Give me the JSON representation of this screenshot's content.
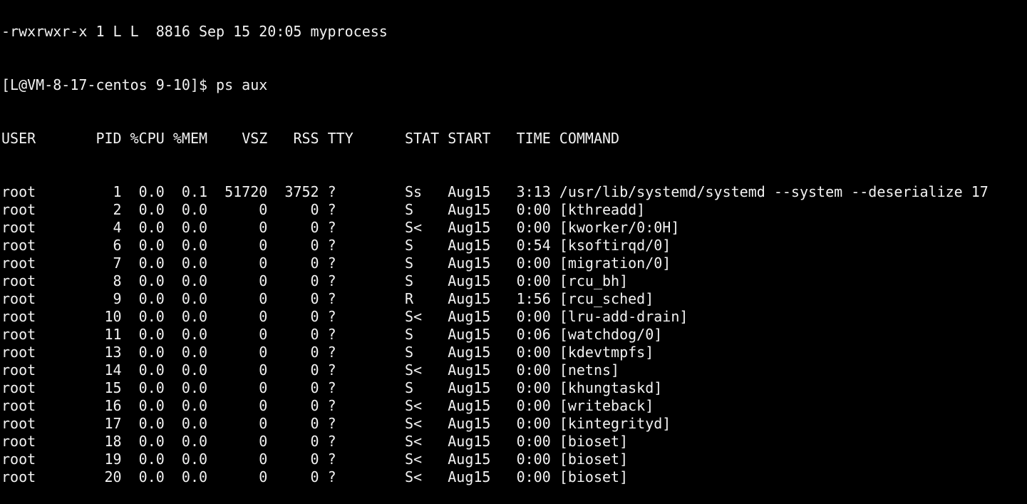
{
  "terminal": {
    "previous_line": "-rwxrwxr-x 1 L L  8816 Sep 15 20:05 myprocess",
    "prompt": "[L@VM-8-17-centos 9-10]$ ",
    "command": "ps aux",
    "header": {
      "user": "USER",
      "pid": "PID",
      "cpu": "%CPU",
      "mem": "%MEM",
      "vsz": "VSZ",
      "rss": "RSS",
      "tty": "TTY",
      "stat": "STAT",
      "start": "START",
      "time": "TIME",
      "command": "COMMAND"
    },
    "processes": [
      {
        "user": "root",
        "pid": "1",
        "cpu": "0.0",
        "mem": "0.1",
        "vsz": "51720",
        "rss": "3752",
        "tty": "?",
        "stat": "Ss",
        "start": "Aug15",
        "time": "3:13",
        "command": "/usr/lib/systemd/systemd --system --deserialize 17"
      },
      {
        "user": "root",
        "pid": "2",
        "cpu": "0.0",
        "mem": "0.0",
        "vsz": "0",
        "rss": "0",
        "tty": "?",
        "stat": "S",
        "start": "Aug15",
        "time": "0:00",
        "command": "[kthreadd]"
      },
      {
        "user": "root",
        "pid": "4",
        "cpu": "0.0",
        "mem": "0.0",
        "vsz": "0",
        "rss": "0",
        "tty": "?",
        "stat": "S<",
        "start": "Aug15",
        "time": "0:00",
        "command": "[kworker/0:0H]"
      },
      {
        "user": "root",
        "pid": "6",
        "cpu": "0.0",
        "mem": "0.0",
        "vsz": "0",
        "rss": "0",
        "tty": "?",
        "stat": "S",
        "start": "Aug15",
        "time": "0:54",
        "command": "[ksoftirqd/0]"
      },
      {
        "user": "root",
        "pid": "7",
        "cpu": "0.0",
        "mem": "0.0",
        "vsz": "0",
        "rss": "0",
        "tty": "?",
        "stat": "S",
        "start": "Aug15",
        "time": "0:00",
        "command": "[migration/0]"
      },
      {
        "user": "root",
        "pid": "8",
        "cpu": "0.0",
        "mem": "0.0",
        "vsz": "0",
        "rss": "0",
        "tty": "?",
        "stat": "S",
        "start": "Aug15",
        "time": "0:00",
        "command": "[rcu_bh]"
      },
      {
        "user": "root",
        "pid": "9",
        "cpu": "0.0",
        "mem": "0.0",
        "vsz": "0",
        "rss": "0",
        "tty": "?",
        "stat": "R",
        "start": "Aug15",
        "time": "1:56",
        "command": "[rcu_sched]"
      },
      {
        "user": "root",
        "pid": "10",
        "cpu": "0.0",
        "mem": "0.0",
        "vsz": "0",
        "rss": "0",
        "tty": "?",
        "stat": "S<",
        "start": "Aug15",
        "time": "0:00",
        "command": "[lru-add-drain]"
      },
      {
        "user": "root",
        "pid": "11",
        "cpu": "0.0",
        "mem": "0.0",
        "vsz": "0",
        "rss": "0",
        "tty": "?",
        "stat": "S",
        "start": "Aug15",
        "time": "0:06",
        "command": "[watchdog/0]"
      },
      {
        "user": "root",
        "pid": "13",
        "cpu": "0.0",
        "mem": "0.0",
        "vsz": "0",
        "rss": "0",
        "tty": "?",
        "stat": "S",
        "start": "Aug15",
        "time": "0:00",
        "command": "[kdevtmpfs]"
      },
      {
        "user": "root",
        "pid": "14",
        "cpu": "0.0",
        "mem": "0.0",
        "vsz": "0",
        "rss": "0",
        "tty": "?",
        "stat": "S<",
        "start": "Aug15",
        "time": "0:00",
        "command": "[netns]"
      },
      {
        "user": "root",
        "pid": "15",
        "cpu": "0.0",
        "mem": "0.0",
        "vsz": "0",
        "rss": "0",
        "tty": "?",
        "stat": "S",
        "start": "Aug15",
        "time": "0:00",
        "command": "[khungtaskd]"
      },
      {
        "user": "root",
        "pid": "16",
        "cpu": "0.0",
        "mem": "0.0",
        "vsz": "0",
        "rss": "0",
        "tty": "?",
        "stat": "S<",
        "start": "Aug15",
        "time": "0:00",
        "command": "[writeback]"
      },
      {
        "user": "root",
        "pid": "17",
        "cpu": "0.0",
        "mem": "0.0",
        "vsz": "0",
        "rss": "0",
        "tty": "?",
        "stat": "S<",
        "start": "Aug15",
        "time": "0:00",
        "command": "[kintegrityd]"
      },
      {
        "user": "root",
        "pid": "18",
        "cpu": "0.0",
        "mem": "0.0",
        "vsz": "0",
        "rss": "0",
        "tty": "?",
        "stat": "S<",
        "start": "Aug15",
        "time": "0:00",
        "command": "[bioset]"
      },
      {
        "user": "root",
        "pid": "19",
        "cpu": "0.0",
        "mem": "0.0",
        "vsz": "0",
        "rss": "0",
        "tty": "?",
        "stat": "S<",
        "start": "Aug15",
        "time": "0:00",
        "command": "[bioset]"
      },
      {
        "user": "root",
        "pid": "20",
        "cpu": "0.0",
        "mem": "0.0",
        "vsz": "0",
        "rss": "0",
        "tty": "?",
        "stat": "S<",
        "start": "Aug15",
        "time": "0:00",
        "command": "[bioset]"
      }
    ]
  }
}
